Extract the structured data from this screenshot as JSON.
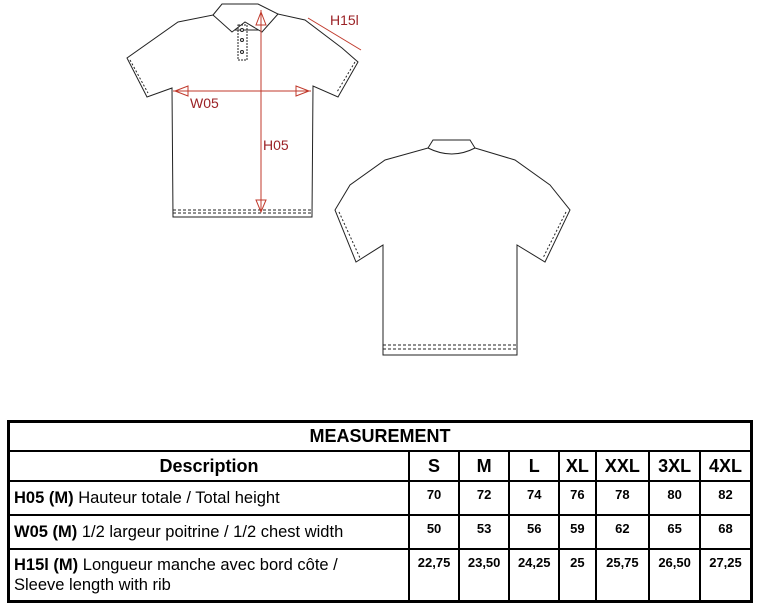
{
  "diagram": {
    "labels": {
      "h05": "H05",
      "w05": "W05",
      "h15l": "H15l"
    },
    "arrow_color": "#c0392b"
  },
  "table": {
    "title": "MEASUREMENT",
    "description_header": "Description",
    "sizes": [
      "S",
      "M",
      "L",
      "XL",
      "XXL",
      "3XL",
      "4XL"
    ],
    "rows": [
      {
        "code": "H05 (M)",
        "text": "Hauteur totale / Total height",
        "values": [
          "70",
          "72",
          "74",
          "76",
          "78",
          "80",
          "82"
        ]
      },
      {
        "code": "W05 (M)",
        "text": "1/2 largeur poitrine / 1/2 chest width",
        "values": [
          "50",
          "53",
          "56",
          "59",
          "62",
          "65",
          "68"
        ]
      },
      {
        "code": "H15l (M)",
        "text": "Longueur manche avec bord côte /",
        "text2": "Sleeve length with rib",
        "values": [
          "22,75",
          "23,50",
          "24,25",
          "25",
          "25,75",
          "26,50",
          "27,25"
        ]
      }
    ]
  }
}
